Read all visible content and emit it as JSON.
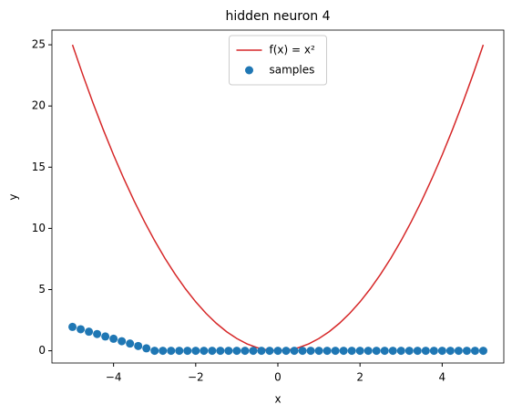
{
  "chart_data": {
    "type": "line",
    "title": "hidden neuron 4",
    "x_label": "x",
    "y_label": "y",
    "series": [
      {
        "name": "f(x) = x²",
        "type": "line",
        "color": "#d62728",
        "x": [
          -5,
          -4.75,
          -4.5,
          -4.25,
          -4,
          -3.75,
          -3.5,
          -3.25,
          -3,
          -2.75,
          -2.5,
          -2.25,
          -2,
          -1.75,
          -1.5,
          -1.25,
          -1,
          -0.75,
          -0.5,
          -0.25,
          0,
          0.25,
          0.5,
          0.75,
          1,
          1.25,
          1.5,
          1.75,
          2,
          2.25,
          2.5,
          2.75,
          3,
          3.25,
          3.5,
          3.75,
          4,
          4.25,
          4.5,
          4.75,
          5
        ],
        "values": [
          25,
          22.5625,
          20.25,
          18.0625,
          16,
          14.0625,
          12.25,
          10.5625,
          9,
          7.5625,
          6.25,
          5.0625,
          4,
          3.0625,
          2.25,
          1.5625,
          1,
          0.5625,
          0.25,
          0.0625,
          0,
          0.0625,
          0.25,
          0.5625,
          1,
          1.5625,
          2.25,
          3.0625,
          4,
          5.0625,
          6.25,
          7.5625,
          9,
          10.5625,
          12.25,
          14.0625,
          16,
          18.0625,
          20.25,
          22.5625,
          25
        ]
      },
      {
        "name": "samples",
        "type": "scatter",
        "color": "#1f77b4",
        "x": [
          -5,
          -4.8,
          -4.6,
          -4.4,
          -4.2,
          -4,
          -3.8,
          -3.6,
          -3.4,
          -3.2,
          -3,
          -2.8,
          -2.6,
          -2.4,
          -2.2,
          -2,
          -1.8,
          -1.6,
          -1.4,
          -1.2,
          -1,
          -0.8,
          -0.6,
          -0.4,
          -0.2,
          0,
          0.2,
          0.4,
          0.6,
          0.8,
          1,
          1.2,
          1.4,
          1.6,
          1.8,
          2,
          2.2,
          2.4,
          2.6,
          2.8,
          3,
          3.2,
          3.4,
          3.6,
          3.8,
          4,
          4.2,
          4.4,
          4.6,
          4.8,
          5
        ],
        "values": [
          1.95,
          1.76,
          1.56,
          1.37,
          1.17,
          0.98,
          0.78,
          0.59,
          0.39,
          0.2,
          0,
          0,
          0,
          0,
          0,
          0,
          0,
          0,
          0,
          0,
          0,
          0,
          0,
          0,
          0,
          0,
          0,
          0,
          0,
          0,
          0,
          0,
          0,
          0,
          0,
          0,
          0,
          0,
          0,
          0,
          0,
          0,
          0,
          0,
          0,
          0,
          0,
          0,
          0,
          0,
          0
        ]
      }
    ],
    "xlim": [
      -5.5,
      5.5
    ],
    "ylim": [
      -1,
      26.2
    ],
    "xticks": [
      {
        "value": -4,
        "label": "−4"
      },
      {
        "value": -2,
        "label": "−2"
      },
      0,
      2,
      4
    ],
    "yticks": [
      0,
      5,
      10,
      15,
      20,
      25
    ],
    "legend": "upper center"
  }
}
